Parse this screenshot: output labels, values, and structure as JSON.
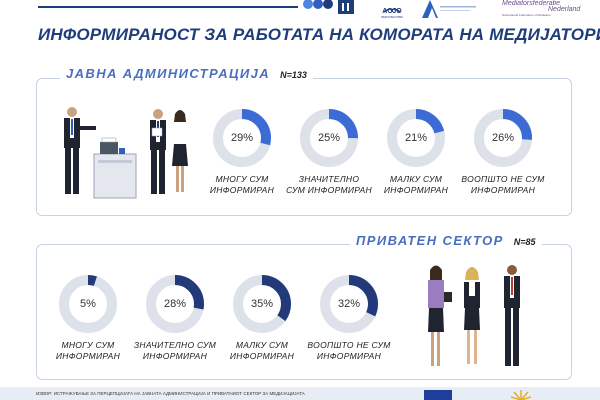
{
  "header": {
    "logo_acjo_text": "ACJO",
    "logo_acjo_sub": "ПЕРСПЕКТИВА",
    "logo_nl_line1": "Mediatorsfederatie",
    "logo_nl_line2": "Nederland",
    "logo_nl_sub": "Netherlands Federation of Mediators"
  },
  "title": "ИНФОРМИРАНОСТ ЗА РАБОТАТА НА КОМОРАТА НА МЕДИЈАТОРИ",
  "colors": {
    "accent": "#1f3d7a",
    "section_title": "#4a6fbf",
    "public_fill": "#3d6bd6",
    "private_fill": "#233a7a",
    "track": "#dde2ea"
  },
  "public": {
    "title": "ЈАВНА АДМИНИСТРАЦИЈА",
    "n": "N=133"
  },
  "private": {
    "title": "ПРИВАТЕН СЕКТОР",
    "n": "N=85"
  },
  "footer": {
    "source": "ИЗВОР: ИСТРАЖУВАЊЕ ЗА ПЕРЦЕПЦИЈАТА НА ЈАВНАТА АДМИНИСТРАЦИЈА И ПРИВАТНИОТ СЕКТОР ЗА МЕДИЈАЦИЈАТА"
  },
  "chart_data": [
    {
      "type": "pie",
      "group": "ЈАВНА АДМИНИСТРАЦИЈА",
      "n": "N=133",
      "categories": [
        "МНОГУ СУМ ИНФОРМИРАН",
        "ЗНАЧИТЕЛНО СУМ ИНФОРМИРАН",
        "МАЛКУ СУМ ИНФОРМИРАН",
        "ВООПШТО НЕ СУМ ИНФОРМИРАН"
      ],
      "labels": [
        [
          "МНОГУ СУМ",
          "ИНФОРМИРАН"
        ],
        [
          "ЗНАЧИТЕЛНО",
          "СУМ ИНФОРМИРАН"
        ],
        [
          "МАЛКУ СУМ",
          "ИНФОРМИРАН"
        ],
        [
          "ВООПШТО НЕ СУМ",
          "ИНФОРМИРАН"
        ]
      ],
      "values": [
        29,
        25,
        21,
        26
      ],
      "value_labels": [
        "29%",
        "25%",
        "21%",
        "26%"
      ]
    },
    {
      "type": "pie",
      "group": "ПРИВАТЕН СЕКТОР",
      "n": "N=85",
      "categories": [
        "МНОГУ СУМ ИНФОРМИРАН",
        "ЗНАЧИТЕЛНО СУМ ИНФОРМИРАН",
        "МАЛКУ СУМ ИНФОРМИРАН",
        "ВООПШТО НЕ СУМ ИНФОРМИРАН"
      ],
      "labels": [
        [
          "МНОГУ СУМ",
          "ИНФОРМИРАН"
        ],
        [
          "ЗНАЧИТЕЛНО СУМ",
          "ИНФОРМИРАН"
        ],
        [
          "МАЛКУ СУМ",
          "ИНФОРМИРАН"
        ],
        [
          "ВООПШТО НЕ СУМ",
          "ИНФОРМИРАН"
        ]
      ],
      "values": [
        5,
        28,
        35,
        32
      ],
      "value_labels": [
        "5%",
        "28%",
        "35%",
        "32%"
      ]
    }
  ]
}
